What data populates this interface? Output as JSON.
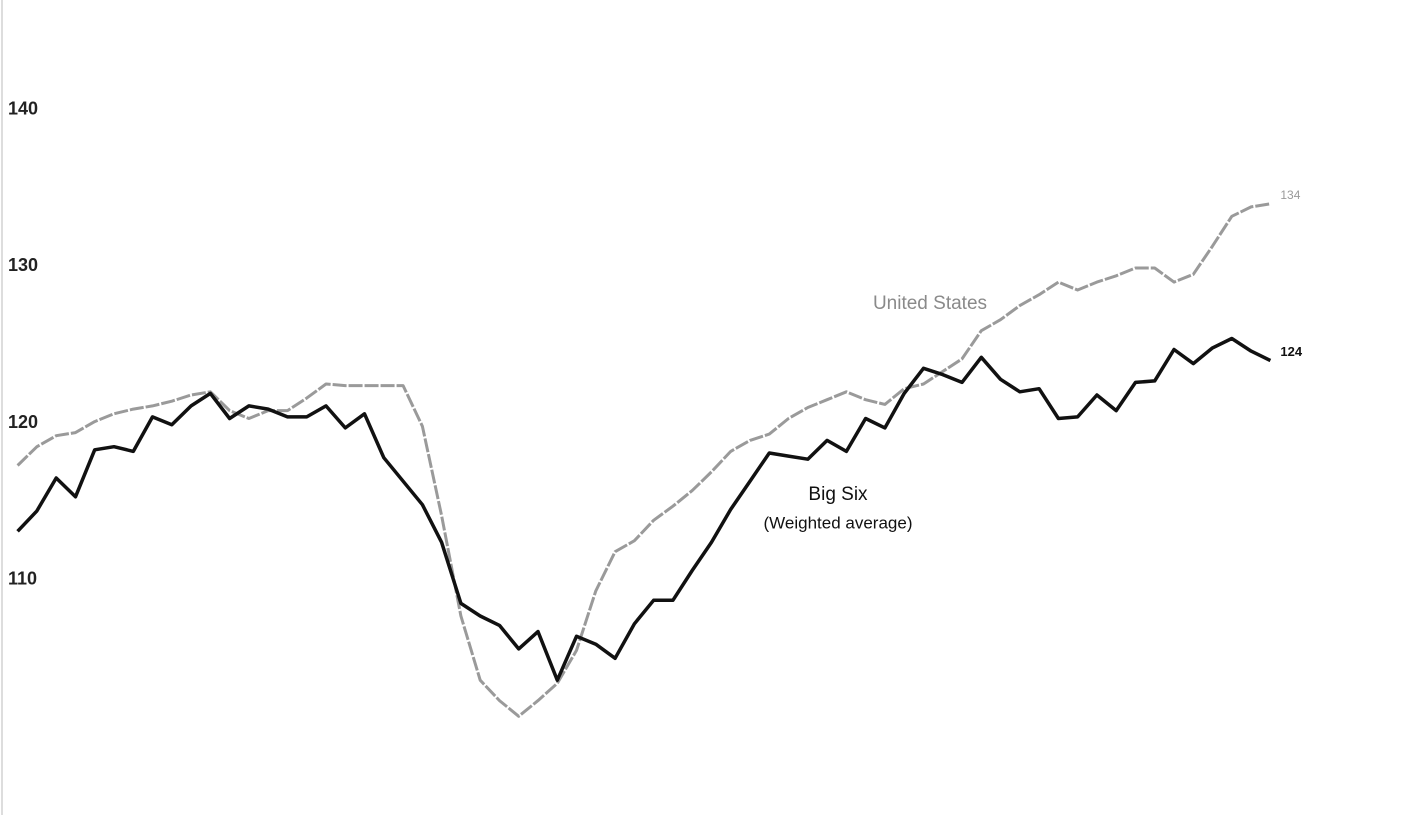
{
  "chart_data": {
    "type": "line",
    "categories": [
      null,
      null,
      null,
      null,
      null,
      null,
      null,
      null,
      null,
      null,
      null,
      null,
      null,
      null,
      null,
      null,
      null,
      null,
      null,
      null,
      null,
      null,
      null,
      null,
      null,
      null,
      null,
      null,
      null,
      null,
      null,
      null,
      null,
      null,
      null,
      null,
      null,
      null,
      null,
      null,
      null,
      null,
      null,
      null,
      null,
      null,
      null,
      null,
      null,
      null,
      null,
      null,
      null,
      null,
      null,
      null,
      null,
      null,
      null,
      null,
      null,
      null,
      null,
      null,
      null,
      null
    ],
    "series": [
      {
        "name": "United States",
        "color": "#9a9a9a",
        "values": [
          117.3,
          118.5,
          119.2,
          119.4,
          120.1,
          120.6,
          120.9,
          121.1,
          121.4,
          121.8,
          122.0,
          120.8,
          120.3,
          120.8,
          120.8,
          121.6,
          122.5,
          122.4,
          122.4,
          122.4,
          122.4,
          119.8,
          114.1,
          107.7,
          103.6,
          102.3,
          101.3,
          102.3,
          103.4,
          105.5,
          109.3,
          111.8,
          112.5,
          113.8,
          114.7,
          115.7,
          116.9,
          118.2,
          118.9,
          119.3,
          120.3,
          121.0,
          121.5,
          122.0,
          121.5,
          121.2,
          122.2,
          122.5,
          123.3,
          124.1,
          125.9,
          126.6,
          127.5,
          128.2,
          129.0,
          128.5,
          129.0,
          129.4,
          129.9,
          129.9,
          129.0,
          129.5,
          131.3,
          133.2,
          133.8,
          134
        ]
      },
      {
        "name": "Big Six",
        "color": "#111111",
        "values": [
          113.1,
          114.4,
          116.5,
          115.3,
          118.3,
          118.5,
          118.2,
          120.4,
          119.9,
          121.1,
          121.9,
          120.3,
          121.1,
          120.9,
          120.4,
          120.4,
          121.1,
          119.7,
          120.6,
          117.8,
          116.3,
          114.8,
          112.4,
          108.5,
          107.7,
          107.1,
          105.6,
          106.7,
          103.6,
          106.4,
          105.9,
          105.0,
          107.2,
          108.7,
          108.7,
          110.6,
          112.4,
          114.5,
          116.3,
          118.1,
          117.9,
          117.7,
          118.9,
          118.2,
          120.3,
          119.7,
          121.9,
          123.5,
          123.1,
          122.6,
          124.2,
          122.8,
          122.0,
          122.2,
          120.3,
          120.4,
          121.8,
          120.8,
          122.6,
          122.7,
          124.7,
          123.8,
          124.8,
          125.4,
          124.6,
          124
        ]
      }
    ],
    "series_note": "(Weighted average)",
    "label_last": true,
    "ylim": [
      95,
      147
    ],
    "yticks": [
      110,
      120,
      130,
      140
    ],
    "grid": false
  }
}
